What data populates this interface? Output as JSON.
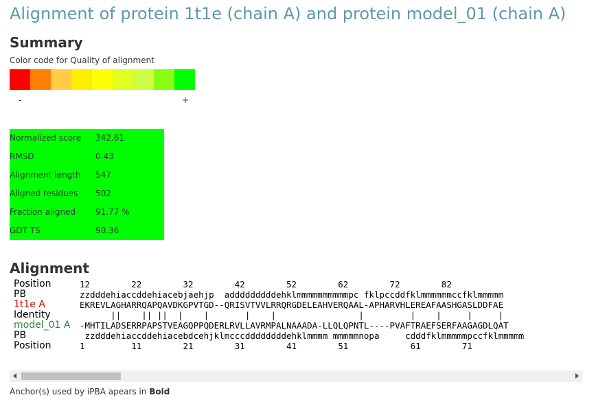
{
  "title": "Alignment of protein 1t1e (chain A) and protein model_01 (chain A)",
  "summary": {
    "heading": "Summary",
    "color_code_label": "Color code for Quality of alignment",
    "colors": [
      "#ff0000",
      "#ff7f00",
      "#ffcc44",
      "#ffee00",
      "#ffff00",
      "#ddff22",
      "#ccff44",
      "#88ff11",
      "#00ff00"
    ],
    "minus": "-",
    "plus": "+",
    "scores": [
      {
        "label": "Normalized score",
        "value": "342.61"
      },
      {
        "label": "RMSD",
        "value": "0.43"
      },
      {
        "label": "Alignment length",
        "value": "547"
      },
      {
        "label": "Aligned residues",
        "value": "502"
      },
      {
        "label": "Fraction aligned",
        "value": "91.77 %"
      },
      {
        "label": "GDT TS",
        "value": "90.36"
      }
    ],
    "score_box_color": "#00ff00"
  },
  "alignment": {
    "heading": "Alignment",
    "rows": [
      {
        "label": "Position",
        "seq": "12        22        32        42        52        62        72        82"
      },
      {
        "label": "PB",
        "seq": "zzdddehiaccddehiacebjaehjp  adddddddddehklmmmmmmmmmmpc fklpccddfklmmmmmmccfklmmmmm"
      },
      {
        "label": "1t1e A",
        "seq": "EKREVLAGHARRQAPQAVDKGPVTGD--QRISVTVVLRRQRGDELEAHVERQAAL-APHARVHLEREAFAASHGASLDDFAE"
      },
      {
        "label": "Identity",
        "seq": "      ||    || ||  |    |       |    |                |         |    |     |     |"
      },
      {
        "label": "model_01 A",
        "seq": "-MHTILADSERRPAPSTVEAGQPPQDERLRVLLAVRMPALNAAADA-LLQLQPNTL----PVAFTRAEFSERFAAGAGDLQAT"
      },
      {
        "label": "PB",
        "seq": " zzdddehiaccddehiacebdcehjklmcccddddddddehklmmmm mmmmmnopa     cdddfklmmmmmpccfklmmmmm"
      },
      {
        "label": "Position",
        "seq": "1         11        21        31        41        51            61        71"
      }
    ]
  },
  "footer": {
    "text": "Anchor(s) used by iPBA apears in ",
    "bold": "Bold"
  }
}
